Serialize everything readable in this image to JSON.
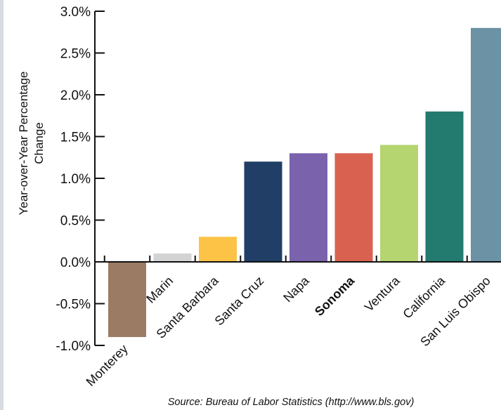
{
  "chart_data": {
    "type": "bar",
    "categories": [
      "Monterey",
      "Marin",
      "Santa Barbara",
      "Santa Cruz",
      "Napa",
      "Sonoma",
      "Ventura",
      "California",
      "San Luis Obispo"
    ],
    "values": [
      -0.9,
      0.1,
      0.3,
      1.2,
      1.3,
      1.3,
      1.4,
      1.8,
      2.8
    ],
    "bar_colors": [
      "#9b7b63",
      "#d3d3d3",
      "#fcc346",
      "#203e66",
      "#7a62ad",
      "#d96150",
      "#b4d56f",
      "#237a6f",
      "#6b92a5"
    ],
    "highlight_category": "Sonoma",
    "ylabel_lines": [
      "Year-over-Year Percentage",
      "Change"
    ],
    "ylim": [
      -1.0,
      3.0
    ],
    "yticks": [
      -1.0,
      -0.5,
      0.0,
      0.5,
      1.0,
      1.5,
      2.0,
      2.5,
      3.0
    ],
    "ytick_labels": [
      "-1.0%",
      "-0.5%",
      "0.0%",
      "0.5%",
      "1.0%",
      "1.5%",
      "2.0%",
      "2.5%",
      "3.0%"
    ],
    "grid": false,
    "legend": "none",
    "source_note": "Source: Bureau of Labor Statistics (http://www.bls.gov)"
  }
}
